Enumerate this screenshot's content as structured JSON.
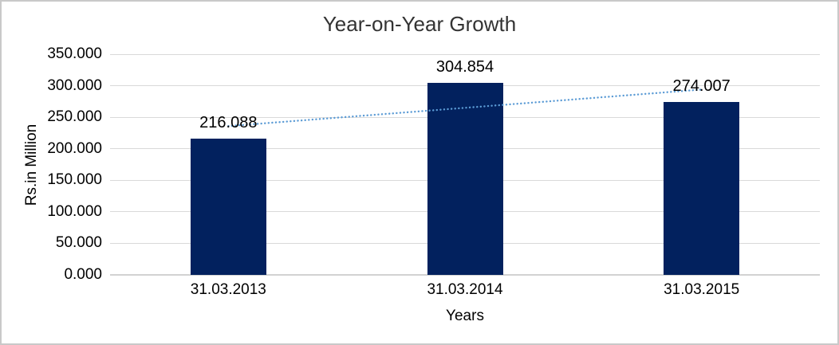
{
  "chart_data": {
    "type": "bar",
    "title": "Year-on-Year Growth",
    "categories": [
      "31.03.2013",
      "31.03.2014",
      "31.03.2015"
    ],
    "values": [
      216.088,
      304.854,
      274.007
    ],
    "value_labels": [
      "216.088",
      "304.854",
      "274.007"
    ],
    "xlabel": "Years",
    "ylabel": "Rs.in Million",
    "ylim": [
      0,
      350
    ],
    "ytick_interval": 50,
    "ytick_labels": [
      "0.000",
      "50.000",
      "100.000",
      "150.000",
      "200.000",
      "250.000",
      "300.000",
      "350.000"
    ],
    "grid": true,
    "legend": "none",
    "trendline": {
      "type": "linear",
      "style": "dotted",
      "values_at_ends": [
        236.0,
        293.9
      ]
    },
    "colors": {
      "bar": "#02215E",
      "trendline": "#5B9BD5",
      "gridline": "#D9D9D9",
      "axis_line": "#D2D2D2",
      "title_text": "#333333",
      "tick_text": "#000000",
      "border": "#C9C9C9"
    }
  }
}
